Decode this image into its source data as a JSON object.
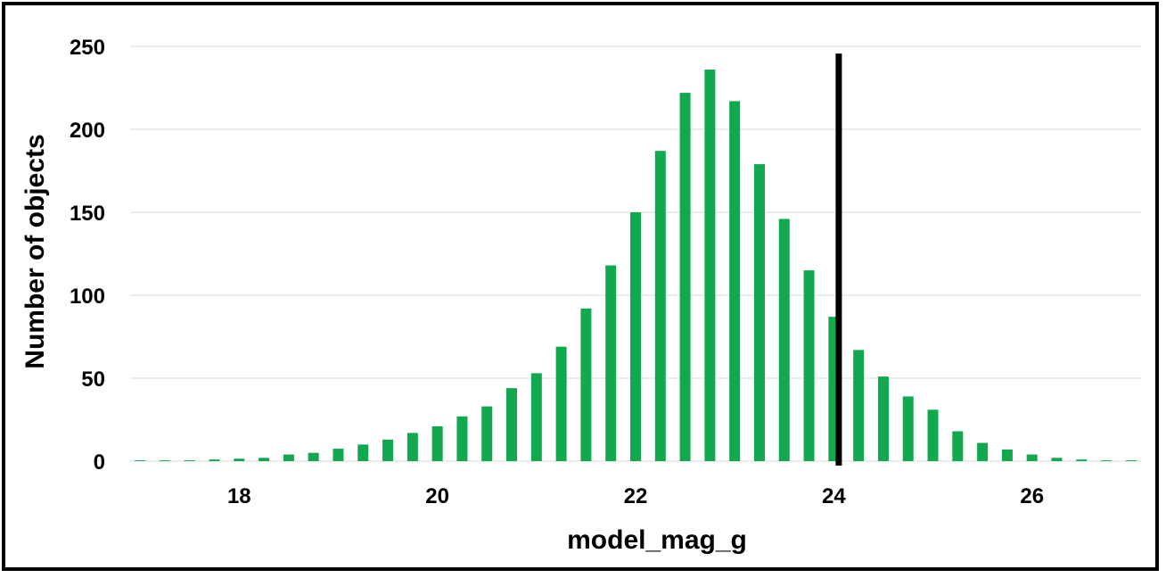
{
  "chart_data": {
    "type": "bar",
    "xlabel": "model_mag_g",
    "ylabel": "Number of objects",
    "xlim": [
      16.9,
      27.1
    ],
    "ylim": [
      0,
      250
    ],
    "x_ticks": [
      18,
      20,
      22,
      24,
      26
    ],
    "y_ticks": [
      0,
      50,
      100,
      150,
      200,
      250
    ],
    "grid": "horizontal",
    "bar_color": "#12A84E",
    "bins": [
      17.0,
      17.25,
      17.5,
      17.75,
      18.0,
      18.25,
      18.5,
      18.75,
      19.0,
      19.25,
      19.5,
      19.75,
      20.0,
      20.25,
      20.5,
      20.75,
      21.0,
      21.25,
      21.5,
      21.75,
      22.0,
      22.25,
      22.5,
      22.75,
      23.0,
      23.25,
      23.5,
      23.75,
      24.0,
      24.25,
      24.5,
      24.75,
      25.0,
      25.25,
      25.5,
      25.75,
      26.0,
      26.25,
      26.5,
      26.75,
      27.0
    ],
    "values": [
      0.5,
      0.5,
      0.5,
      1,
      1.5,
      2,
      4,
      5,
      7.5,
      10,
      13,
      17,
      21,
      27,
      33,
      44,
      53,
      69,
      92,
      118,
      150,
      187,
      222,
      236,
      217,
      179,
      146,
      115,
      87,
      67,
      51,
      39,
      31,
      18,
      11,
      7,
      4,
      2,
      1,
      0.5,
      0.5
    ],
    "reference_line": {
      "x": 24.05,
      "color": "#000000"
    }
  }
}
